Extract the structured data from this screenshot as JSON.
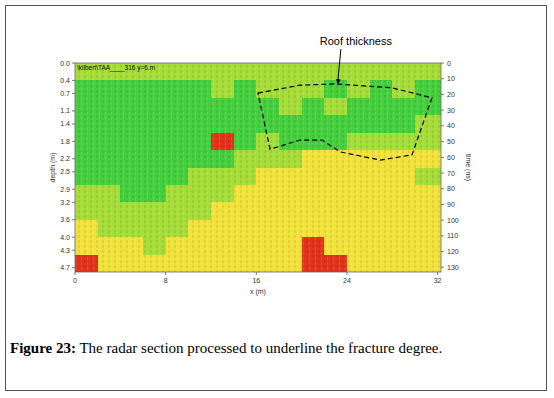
{
  "chart_data": {
    "type": "heatmap",
    "title": "\\kilbert\\TAA____316 y=6.m",
    "x_label": "x (m)",
    "y_label": "depth (m)",
    "y2_label": "time (ns)",
    "xlim": [
      0,
      32.3
    ],
    "xticks": [
      0,
      8,
      16,
      24,
      32
    ],
    "ylim": [
      0,
      4.8
    ],
    "yticks": [
      {
        "value": 0,
        "label": "0.0"
      },
      0.4,
      0.7,
      1.1,
      1.4,
      1.8,
      2.2,
      2.5,
      2.9,
      3.2,
      3.6,
      {
        "value": 4,
        "label": "4.0"
      },
      4.3,
      4.7
    ],
    "y2lim": [
      0,
      133
    ],
    "y2ticks": [
      0,
      10,
      20,
      30,
      40,
      50,
      60,
      70,
      80,
      90,
      100,
      110,
      120,
      130
    ],
    "cells": {
      "x_edges": [
        0,
        2,
        4,
        6,
        8,
        10,
        12,
        14,
        16,
        18,
        20,
        22,
        24,
        26,
        28,
        30,
        32.3
      ],
      "depth_edges": [
        0,
        0.4,
        0.8,
        1.2,
        1.6,
        2.0,
        2.4,
        2.8,
        3.2,
        3.6,
        4.0,
        4.4,
        4.8
      ],
      "values": [
        [
          1,
          1,
          1,
          1,
          1,
          1,
          1,
          1,
          1,
          1,
          1,
          1,
          1,
          1,
          1,
          1
        ],
        [
          0,
          0,
          0,
          0,
          0,
          0,
          1,
          0,
          1,
          1,
          1,
          0,
          1,
          0,
          1,
          0
        ],
        [
          0,
          0,
          0,
          0,
          0,
          0,
          0,
          0,
          0,
          1,
          0,
          1,
          0,
          0,
          0,
          0
        ],
        [
          0,
          0,
          0,
          0,
          0,
          0,
          0,
          0,
          0,
          0,
          0,
          0,
          0,
          0,
          0,
          1
        ],
        [
          0,
          0,
          0,
          0,
          0,
          0,
          3,
          0,
          1,
          0,
          0,
          0,
          1,
          1,
          1,
          1
        ],
        [
          0,
          0,
          0,
          0,
          0,
          0,
          0,
          1,
          1,
          1,
          2,
          2,
          2,
          2,
          2,
          2
        ],
        [
          0,
          0,
          0,
          0,
          0,
          1,
          1,
          1,
          2,
          2,
          2,
          2,
          2,
          2,
          2,
          1
        ],
        [
          1,
          1,
          0,
          0,
          1,
          1,
          1,
          2,
          2,
          2,
          2,
          2,
          2,
          2,
          2,
          2
        ],
        [
          1,
          1,
          1,
          1,
          1,
          1,
          2,
          2,
          2,
          2,
          2,
          2,
          2,
          2,
          2,
          2
        ],
        [
          2,
          1,
          1,
          1,
          1,
          2,
          2,
          2,
          2,
          2,
          2,
          2,
          2,
          2,
          2,
          2
        ],
        [
          2,
          2,
          2,
          1,
          2,
          2,
          2,
          2,
          2,
          2,
          3,
          2,
          2,
          2,
          2,
          2
        ],
        [
          3,
          2,
          2,
          2,
          2,
          2,
          2,
          2,
          2,
          2,
          3,
          3,
          2,
          2,
          2,
          2
        ]
      ]
    },
    "annotation": {
      "text": "Roof thickness",
      "arrow_to": [
        23.2,
        0.5
      ],
      "outline": [
        [
          16.15,
          0.69
        ],
        [
          19.86,
          0.51
        ],
        [
          22.95,
          0.48
        ],
        [
          27.98,
          0.57
        ],
        [
          31.5,
          0.8
        ],
        [
          29.74,
          2.11
        ],
        [
          26.92,
          2.23
        ],
        [
          23.39,
          2.04
        ],
        [
          21.8,
          1.77
        ],
        [
          19.86,
          1.77
        ],
        [
          17.21,
          1.98
        ]
      ]
    },
    "caption": {
      "label": "Figure 23:",
      "text": "The radar section processed to underline the fracture degree."
    }
  }
}
